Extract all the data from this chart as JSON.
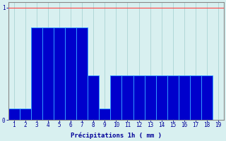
{
  "xlabel": "Précipitations 1h ( mm )",
  "background_color": "#d8f0f0",
  "bar_color": "#0000cc",
  "bar_edge_color": "#3399ff",
  "grid_color": "#b0d8d8",
  "text_color": "#000099",
  "axis_color": "#888888",
  "red_line_color": "#ff4444",
  "ylim": [
    0,
    1.05
  ],
  "xlim": [
    0.5,
    19.5
  ],
  "yticks": [
    0,
    1
  ],
  "ytick_labels": [
    "0",
    "1"
  ],
  "xticks": [
    1,
    2,
    3,
    4,
    5,
    6,
    7,
    8,
    9,
    10,
    11,
    12,
    13,
    14,
    15,
    16,
    17,
    18,
    19
  ],
  "hours": [
    1,
    2,
    3,
    4,
    5,
    6,
    7,
    8,
    9,
    10,
    11,
    12,
    13,
    14,
    15,
    16,
    17,
    18,
    19
  ],
  "values": [
    0.1,
    0.1,
    0.82,
    0.82,
    0.82,
    0.82,
    0.82,
    0.4,
    0.1,
    0.4,
    0.4,
    0.4,
    0.4,
    0.4,
    0.4,
    0.4,
    0.4,
    0.4,
    0.0
  ],
  "tick_fontsize": 5.5,
  "xlabel_fontsize": 6.5,
  "bar_width": 1.0,
  "linewidth": 0.7
}
